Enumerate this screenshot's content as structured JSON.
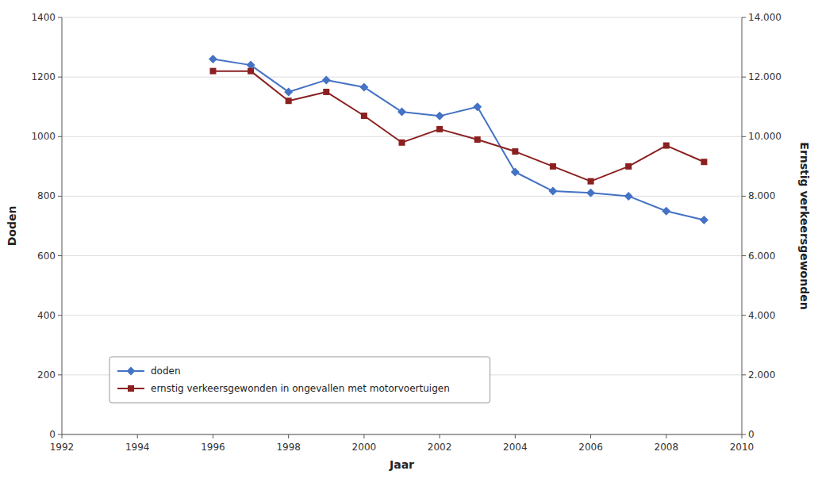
{
  "chart_data": {
    "type": "line",
    "xlabel": "Jaar",
    "ylabel": "Doden",
    "y2label": "Ernstig verkeersgewonden",
    "x": [
      1996,
      1997,
      1998,
      1999,
      2000,
      2001,
      2002,
      2003,
      2004,
      2005,
      2006,
      2007,
      2008,
      2009
    ],
    "series": [
      {
        "name": "doden",
        "color": "#4472C4",
        "marker": "diamond",
        "values": [
          1260,
          1240,
          1150,
          1190,
          1166,
          1083,
          1069,
          1100,
          881,
          817,
          811,
          800,
          750,
          720
        ]
      },
      {
        "name": "ernstig verkeersgewonden in ongevallen met motorvoertuigen",
        "color": "#8B2020",
        "marker": "square",
        "axis": "y2",
        "values": [
          12200,
          12200,
          11200,
          11500,
          10700,
          9800,
          10250,
          9900,
          9500,
          9000,
          8500,
          9000,
          9700,
          9150
        ]
      }
    ],
    "xlim": [
      1992,
      2010
    ],
    "xticks": [
      1992,
      1994,
      1996,
      1998,
      2000,
      2002,
      2004,
      2006,
      2008,
      2010
    ],
    "ylim": [
      0,
      1400
    ],
    "yticks": [
      0,
      200,
      400,
      600,
      800,
      1000,
      1200,
      1400
    ],
    "y2lim": [
      0,
      14000
    ],
    "y2ticks": [
      0,
      {
        "value": 2000,
        "label": "2.000"
      },
      {
        "value": 4000,
        "label": "4.000"
      },
      {
        "value": 6000,
        "label": "6.000"
      },
      {
        "value": 8000,
        "label": "8.000"
      },
      {
        "value": 10000,
        "label": "10.000"
      },
      {
        "value": 12000,
        "label": "12.000"
      },
      {
        "value": 14000,
        "label": "14.000"
      }
    ],
    "grid": true,
    "legend": "lower left"
  }
}
